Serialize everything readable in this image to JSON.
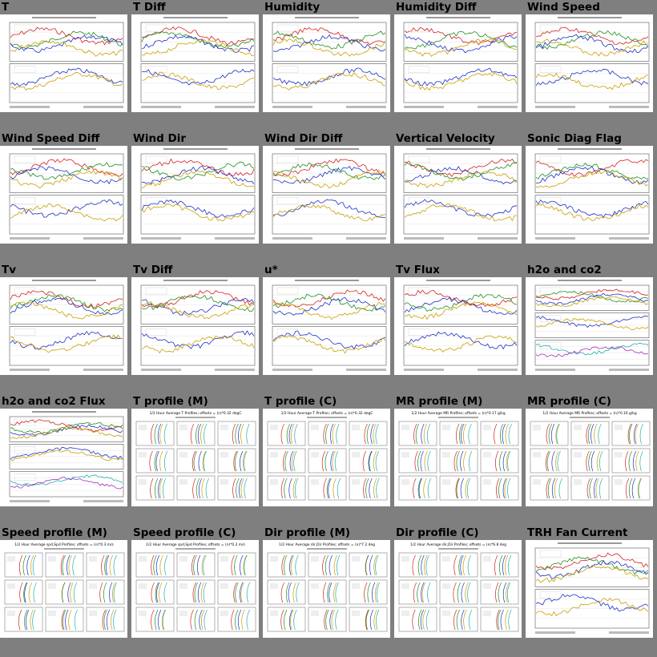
{
  "colors": {
    "background": "#7f7f7f",
    "thumbnail": "#ffffff",
    "series": [
      "#d62020",
      "#1f8f1f",
      "#2030c8",
      "#c8a000",
      "#20b0b0",
      "#a030c0",
      "#202020",
      "#e07020"
    ]
  },
  "plots": [
    {
      "title": "T",
      "kind": "two-panel"
    },
    {
      "title": "T Diff",
      "kind": "two-panel"
    },
    {
      "title": "Humidity",
      "kind": "two-panel"
    },
    {
      "title": "Humidity Diff",
      "kind": "two-panel"
    },
    {
      "title": "Wind Speed",
      "kind": "two-panel"
    },
    {
      "title": "Wind Speed Diff",
      "kind": "two-panel"
    },
    {
      "title": "Wind Dir",
      "kind": "two-panel"
    },
    {
      "title": "Wind Dir Diff",
      "kind": "two-panel"
    },
    {
      "title": "Vertical Velocity",
      "kind": "two-panel"
    },
    {
      "title": "Sonic Diag Flag",
      "kind": "two-panel"
    },
    {
      "title": "Tv",
      "kind": "two-panel"
    },
    {
      "title": "Tv Diff",
      "kind": "two-panel"
    },
    {
      "title": "u*",
      "kind": "two-panel"
    },
    {
      "title": "Tv Flux",
      "kind": "two-panel"
    },
    {
      "title": "h2o and co2",
      "kind": "three-panel"
    },
    {
      "title": "h2o and co2 Flux",
      "kind": "three-panel"
    },
    {
      "title": "T profile (M)",
      "kind": "profile",
      "heading": "1/2 Hour Average T Profiles; offsets = (n)*0.32 degC"
    },
    {
      "title": "T profile (C)",
      "kind": "profile",
      "heading": "1/2 Hour Average T Profiles; offsets = (n)*0.32 degC"
    },
    {
      "title": "MR profile (M)",
      "kind": "profile",
      "heading": "1/2 Hour Average MR Profiles; offsets = (n)*0.17 g/kg"
    },
    {
      "title": "MR profile (C)",
      "kind": "profile",
      "heading": "1/2 Hour Average MR Profiles; offsets = (n)*0.16 g/kg"
    },
    {
      "title": "Speed profile (M)",
      "kind": "profile",
      "heading": "1/2 Hour Average spd,Spd Profiles; offsets = (n)*0.3 m/s"
    },
    {
      "title": "Speed profile (C)",
      "kind": "profile",
      "heading": "1/2 Hour Average spd,Spd Profiles; offsets = (n)*0.2 m/s"
    },
    {
      "title": "Dir profile (M)",
      "kind": "profile",
      "heading": "1/2 Hour Average dir,Dir Profiles; offsets = (n)*7.2 deg"
    },
    {
      "title": "Dir profile (C)",
      "kind": "profile",
      "heading": "1/2 Hour Average dir,Dir Profiles; offsets = (n)*6.8 deg"
    },
    {
      "title": "TRH Fan Current",
      "kind": "two-panel"
    }
  ]
}
